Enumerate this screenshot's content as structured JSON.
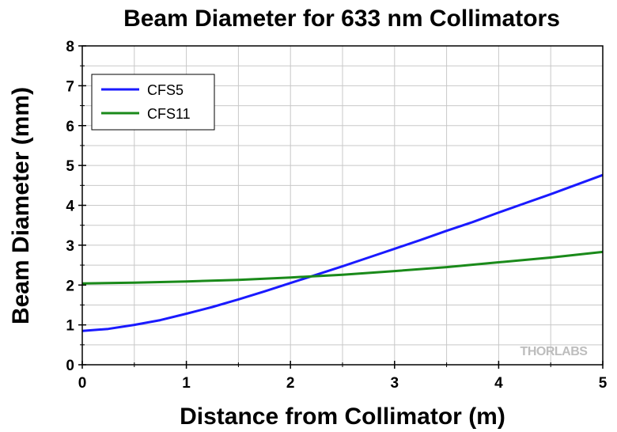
{
  "chart_data": {
    "type": "line",
    "title": "Beam Diameter for 633 nm Collimators",
    "xlabel": "Distance from Collimator (m)",
    "ylabel": "Beam Diameter (mm)",
    "xlim": [
      0,
      5
    ],
    "ylim": [
      0,
      8
    ],
    "xticks": [
      "0",
      "1",
      "2",
      "3",
      "4",
      "5"
    ],
    "yticks": [
      "0",
      "1",
      "2",
      "3",
      "4",
      "5",
      "6",
      "7",
      "8"
    ],
    "grid": true,
    "legend_position": "top-left",
    "series": [
      {
        "name": "CFS5",
        "color": "#1a1aff",
        "x": [
          0,
          0.25,
          0.5,
          0.75,
          1.0,
          1.25,
          1.5,
          1.75,
          2.0,
          2.25,
          2.5,
          2.75,
          3.0,
          3.25,
          3.5,
          3.75,
          4.0,
          4.25,
          4.5,
          4.75,
          5.0
        ],
        "y": [
          0.85,
          0.9,
          1.0,
          1.12,
          1.28,
          1.45,
          1.64,
          1.84,
          2.05,
          2.26,
          2.47,
          2.69,
          2.91,
          3.13,
          3.36,
          3.58,
          3.82,
          4.05,
          4.28,
          4.52,
          4.76
        ]
      },
      {
        "name": "CFS11",
        "color": "#1a8a1a",
        "x": [
          0,
          0.5,
          1.0,
          1.5,
          2.0,
          2.5,
          3.0,
          3.5,
          4.0,
          4.5,
          5.0
        ],
        "y": [
          2.04,
          2.06,
          2.09,
          2.13,
          2.19,
          2.26,
          2.35,
          2.45,
          2.57,
          2.69,
          2.83
        ]
      }
    ],
    "watermark": "THORLABS"
  }
}
